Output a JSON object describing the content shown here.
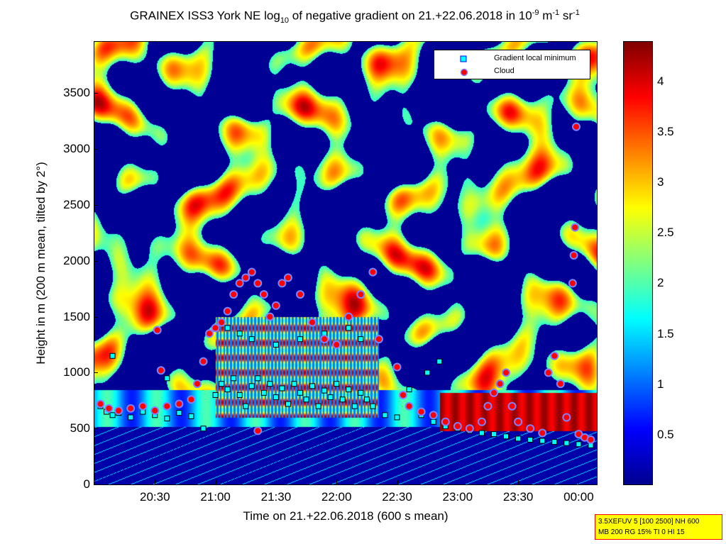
{
  "title": {
    "prefix": "GRAINEX ISS3 York NE log",
    "sub": "10",
    "middle": " of negative gradient on 21.+22.06.2018 in 10",
    "sup1": "-9",
    "unit_mid": " m",
    "sup2": "-1",
    "unit_end": " sr",
    "sup3": "-1"
  },
  "x_axis_label": "Time on 21.+22.06.2018 (600 s mean)",
  "y_axis_label": "Height in m (200 m mean, tilted by 2°)",
  "legend": [
    {
      "label": "Gradient local minimum",
      "marker": "cyan-square",
      "color": "#00ffff"
    },
    {
      "label": "Cloud",
      "marker": "red-circle",
      "color": "#ff0000"
    }
  ],
  "settings_text": [
    "3.5XEFUV 5 [100 2500] NH 600",
    "MB 200 RG 15% TI 0 HI 15"
  ],
  "colors": {
    "background_low": "#00008f",
    "low_cyan": "#00ffff",
    "mid_yellow": "#ffff00",
    "high_orange": "#ff8000",
    "max_darkred": "#800000",
    "marker_cloud": "#ff0000",
    "marker_cloud_edge": "#8080ff",
    "marker_min": "#00ffff"
  },
  "chart_data": {
    "type": "heatmap",
    "xlabel": "Time on 21.+22.06.2018 (600 s mean)",
    "ylabel": "Height in m (200 m mean, tilted by 2°)",
    "x_tick_labels": [
      "20:30",
      "21:00",
      "21:30",
      "22:00",
      "22:30",
      "23:00",
      "23:30",
      "00:00"
    ],
    "x_tick_hours": [
      20.5,
      21.0,
      21.5,
      22.0,
      22.5,
      23.0,
      23.5,
      24.0
    ],
    "xlim_hours": [
      20.0,
      24.15
    ],
    "y_ticks": [
      0,
      500,
      1000,
      1500,
      2000,
      2500,
      3000,
      3500
    ],
    "y_tick_labels": [
      "0",
      "500",
      "1000",
      "1500",
      "2000",
      "2500",
      "3000",
      "3500"
    ],
    "ylim": [
      0,
      3960
    ],
    "colorbar": {
      "ticks": [
        0.5,
        1,
        1.5,
        2,
        2.5,
        3,
        3.5,
        4
      ],
      "tick_labels": [
        "0.5",
        "1",
        "1.5",
        "2",
        "2.5",
        "3",
        "3.5",
        "4"
      ],
      "range": [
        0,
        4.4
      ]
    },
    "grid": false,
    "legend_position": "top-right",
    "series": [
      {
        "name": "Gradient local minimum",
        "marker": "square",
        "points": [
          [
            20.05,
            700
          ],
          [
            20.1,
            650
          ],
          [
            20.15,
            620
          ],
          [
            20.2,
            640
          ],
          [
            20.3,
            600
          ],
          [
            20.4,
            650
          ],
          [
            20.5,
            620
          ],
          [
            20.6,
            590
          ],
          [
            20.7,
            640
          ],
          [
            20.8,
            610
          ],
          [
            20.9,
            500
          ],
          [
            21.0,
            800
          ],
          [
            21.05,
            900
          ],
          [
            21.1,
            850
          ],
          [
            21.15,
            950
          ],
          [
            21.2,
            800
          ],
          [
            21.25,
            700
          ],
          [
            21.3,
            880
          ],
          [
            21.35,
            950
          ],
          [
            21.4,
            820
          ],
          [
            21.45,
            900
          ],
          [
            21.5,
            780
          ],
          [
            21.55,
            860
          ],
          [
            21.6,
            720
          ],
          [
            21.65,
            900
          ],
          [
            21.7,
            820
          ],
          [
            21.75,
            760
          ],
          [
            21.8,
            880
          ],
          [
            21.85,
            700
          ],
          [
            21.9,
            840
          ],
          [
            21.95,
            780
          ],
          [
            22.0,
            900
          ],
          [
            22.05,
            760
          ],
          [
            22.1,
            850
          ],
          [
            22.15,
            700
          ],
          [
            22.2,
            820
          ],
          [
            22.25,
            760
          ],
          [
            22.3,
            700
          ],
          [
            22.4,
            620
          ],
          [
            22.5,
            600
          ],
          [
            22.6,
            850
          ],
          [
            22.7,
            620
          ],
          [
            22.8,
            560
          ],
          [
            22.9,
            520
          ],
          [
            23.0,
            500
          ],
          [
            23.1,
            480
          ],
          [
            23.2,
            460
          ],
          [
            23.3,
            450
          ],
          [
            23.4,
            430
          ],
          [
            23.5,
            410
          ],
          [
            23.6,
            400
          ],
          [
            23.7,
            390
          ],
          [
            23.8,
            380
          ],
          [
            23.9,
            370
          ],
          [
            24.0,
            360
          ],
          [
            24.1,
            350
          ],
          [
            21.1,
            1400
          ],
          [
            21.2,
            1350
          ],
          [
            21.3,
            1300
          ],
          [
            21.5,
            1250
          ],
          [
            21.7,
            1300
          ],
          [
            21.9,
            1350
          ],
          [
            22.1,
            1400
          ],
          [
            22.2,
            1300
          ],
          [
            20.15,
            1150
          ],
          [
            20.6,
            950
          ],
          [
            22.75,
            1000
          ],
          [
            22.85,
            1100
          ]
        ]
      },
      {
        "name": "Cloud",
        "marker": "circle",
        "points": [
          [
            20.05,
            720
          ],
          [
            20.12,
            680
          ],
          [
            20.2,
            660
          ],
          [
            20.3,
            680
          ],
          [
            20.4,
            700
          ],
          [
            20.5,
            660
          ],
          [
            20.55,
            1020
          ],
          [
            20.6,
            700
          ],
          [
            20.7,
            720
          ],
          [
            20.8,
            760
          ],
          [
            20.85,
            900
          ],
          [
            20.9,
            1100
          ],
          [
            20.95,
            1350
          ],
          [
            21.0,
            1400
          ],
          [
            21.05,
            1450
          ],
          [
            21.1,
            1550
          ],
          [
            21.15,
            1700
          ],
          [
            21.2,
            1800
          ],
          [
            21.25,
            1850
          ],
          [
            21.3,
            1900
          ],
          [
            21.35,
            1800
          ],
          [
            21.4,
            1700
          ],
          [
            21.45,
            1500
          ],
          [
            21.5,
            1600
          ],
          [
            21.55,
            1800
          ],
          [
            21.6,
            1850
          ],
          [
            21.7,
            1700
          ],
          [
            21.8,
            1450
          ],
          [
            21.9,
            1300
          ],
          [
            22.0,
            1250
          ],
          [
            22.1,
            1500
          ],
          [
            22.2,
            1700
          ],
          [
            22.3,
            1900
          ],
          [
            22.35,
            1300
          ],
          [
            22.5,
            1050
          ],
          [
            22.55,
            800
          ],
          [
            22.6,
            700
          ],
          [
            22.7,
            650
          ],
          [
            22.8,
            620
          ],
          [
            22.9,
            560
          ],
          [
            23.0,
            520
          ],
          [
            23.1,
            500
          ],
          [
            23.2,
            560
          ],
          [
            23.25,
            700
          ],
          [
            23.3,
            820
          ],
          [
            23.35,
            900
          ],
          [
            23.4,
            1000
          ],
          [
            23.45,
            700
          ],
          [
            23.5,
            560
          ],
          [
            23.6,
            500
          ],
          [
            23.7,
            460
          ],
          [
            23.75,
            1000
          ],
          [
            23.8,
            1150
          ],
          [
            23.85,
            900
          ],
          [
            23.9,
            600
          ],
          [
            23.95,
            1800
          ],
          [
            23.96,
            2050
          ],
          [
            23.97,
            2300
          ],
          [
            23.98,
            3200
          ],
          [
            24.0,
            450
          ],
          [
            24.05,
            420
          ],
          [
            24.1,
            400
          ],
          [
            20.52,
            1380
          ],
          [
            21.35,
            480
          ]
        ]
      }
    ]
  }
}
